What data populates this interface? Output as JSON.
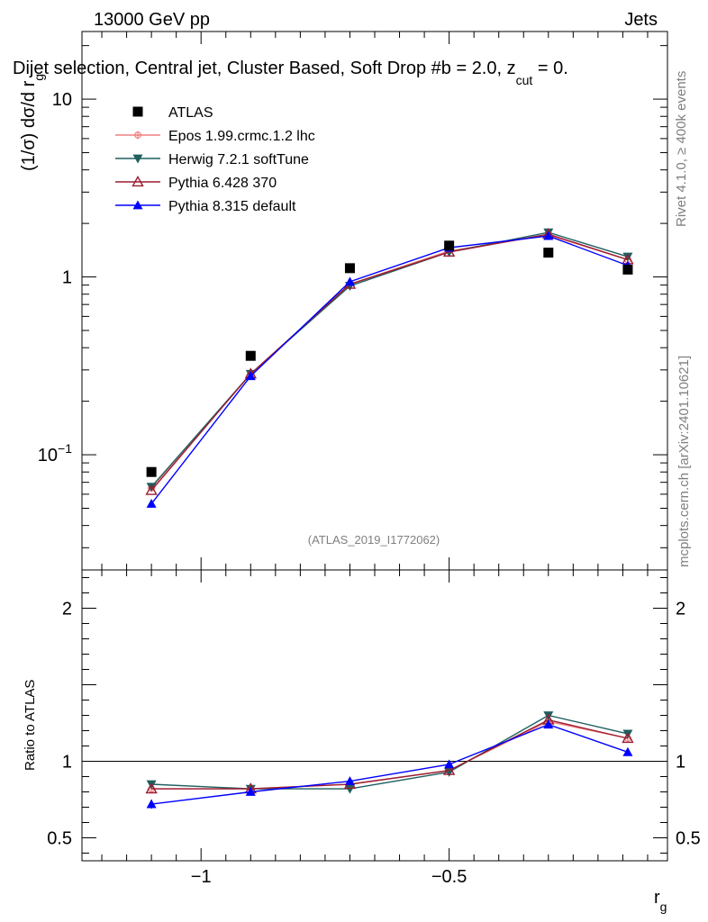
{
  "header": {
    "energy_label": "13000 GeV pp",
    "category_label": "Jets",
    "selection_title_main": "Dijet selection, Central jet, Cluster Based, Soft Drop #b = 2.0, z",
    "selection_title_sub": "cut",
    "selection_title_end": " = 0.",
    "rivet_label": "Rivet 4.1.0, ≥ 400k events",
    "mcplots_label": "mcplots.cern.ch [arXiv:2401.10621]",
    "analysis_id": "(ATLAS_2019_I1772062)"
  },
  "colors": {
    "atlas": "#000000",
    "epos": "#f08080",
    "herwig": "#1f5f5f",
    "pythia6": "#9b1c31",
    "pythia8": "#0000ff",
    "gray_text": "#808080"
  },
  "chart_data": [
    {
      "type": "line",
      "panel": "main",
      "xlabel_main": "r",
      "xlabel_sub": "g",
      "ylabel_main": "(1/σ) dσ/d r",
      "ylabel_sub": "g",
      "yscale": "log",
      "xlim": [
        -1.24,
        -0.06
      ],
      "ylim": [
        0.0225,
        24
      ],
      "yticks": [
        {
          "value": 0.1,
          "label": "10",
          "exp": "−1"
        },
        {
          "value": 1,
          "label": "1",
          "exp": ""
        },
        {
          "value": 10,
          "label": "10",
          "exp": ""
        }
      ],
      "x": [
        -1.1,
        -0.9,
        -0.7,
        -0.5,
        -0.3,
        -0.14
      ],
      "series": [
        {
          "name": "ATLAS",
          "key": "atlas",
          "marker": "square",
          "values": [
            0.08,
            0.36,
            1.12,
            1.5,
            1.37,
            1.1
          ]
        },
        {
          "name": "Epos 1.99.crmc.1.2 lhc",
          "key": "epos",
          "marker": "open-cross",
          "values": [
            0.065,
            0.285,
            0.91,
            1.4,
            1.72,
            1.25
          ]
        },
        {
          "name": "Herwig 7.2.1 softTune",
          "key": "herwig",
          "marker": "triangle-down",
          "values": [
            0.066,
            0.285,
            0.89,
            1.38,
            1.78,
            1.3
          ]
        },
        {
          "name": "Pythia 6.428 370",
          "key": "pythia6",
          "marker": "open-triangle",
          "values": [
            0.063,
            0.285,
            0.91,
            1.38,
            1.74,
            1.25
          ]
        },
        {
          "name": "Pythia 8.315 default",
          "key": "pythia8",
          "marker": "triangle-up",
          "values": [
            0.053,
            0.277,
            0.94,
            1.46,
            1.7,
            1.16
          ]
        }
      ]
    },
    {
      "type": "line",
      "panel": "ratio",
      "ylabel": "Ratio to ATLAS",
      "ylim": [
        0.35,
        2.25
      ],
      "yticks": [
        {
          "value": 0.5,
          "label": "0.5"
        },
        {
          "value": 1,
          "label": "1"
        },
        {
          "value": 2,
          "label": "2"
        }
      ],
      "xticks": [
        {
          "value": -1,
          "label": "−1"
        },
        {
          "value": -0.5,
          "label": "−0.5"
        }
      ],
      "reference": 1,
      "x": [
        -1.1,
        -0.9,
        -0.7,
        -0.5,
        -0.3,
        -0.14
      ],
      "series": [
        {
          "name": "Herwig 7.2.1 softTune",
          "key": "herwig",
          "marker": "triangle-down",
          "values": [
            0.85,
            0.82,
            0.82,
            0.93,
            1.3,
            1.18
          ]
        },
        {
          "name": "Epos 1.99.crmc.1.2 lhc",
          "key": "epos",
          "marker": "open-cross",
          "values": [
            0.82,
            0.82,
            0.85,
            0.94,
            1.26,
            1.15
          ]
        },
        {
          "name": "Pythia 6.428 370",
          "key": "pythia6",
          "marker": "open-triangle",
          "values": [
            0.82,
            0.82,
            0.85,
            0.94,
            1.27,
            1.15
          ]
        },
        {
          "name": "Pythia 8.315 default",
          "key": "pythia8",
          "marker": "triangle-up",
          "values": [
            0.72,
            0.8,
            0.87,
            0.98,
            1.24,
            1.06
          ]
        }
      ]
    }
  ]
}
